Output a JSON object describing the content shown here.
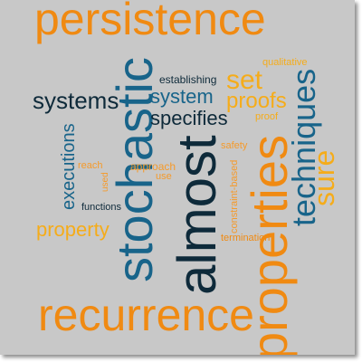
{
  "cloud": {
    "words": {
      "persistence": "persistence",
      "stochastic": "stochastic",
      "almost": "almost",
      "properties": "properties",
      "recurrence": "recurrence",
      "techniques": "techniques",
      "sure": "sure",
      "systems": "systems",
      "system": "system",
      "set": "set",
      "proofs": "proofs",
      "specifies": "specifies",
      "establishing": "establishing",
      "qualitative": "qualitative",
      "proof": "proof",
      "executions": "executions",
      "property": "property",
      "reach": "reach",
      "approach": "approach",
      "used": "used",
      "use": "use",
      "functions": "functions",
      "safety": "safety",
      "constraint_based": "constraint-based",
      "termination": "termination"
    },
    "colors": {
      "background": "#c8c8c8",
      "orange": "#f08a12",
      "gold": "#f5ac1a",
      "blue": "#18648a",
      "navy": "#0e2a3a"
    }
  }
}
